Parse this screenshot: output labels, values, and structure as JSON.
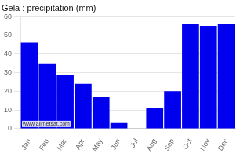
{
  "chart_data": {
    "type": "bar",
    "title": "Gela : precipitation (mm)",
    "categories": [
      "Jan",
      "Feb",
      "Mar",
      "Apr",
      "May",
      "Jun",
      "Jul",
      "Aug",
      "Sep",
      "Oct",
      "Nov",
      "Dec"
    ],
    "values": [
      46,
      35,
      29,
      24,
      17,
      3,
      0,
      11,
      20,
      56,
      55,
      56
    ],
    "color": "#0000ee",
    "ylim": [
      0,
      60
    ],
    "yticks": [
      0,
      10,
      20,
      30,
      40,
      50,
      60
    ],
    "grid": true,
    "annotations": [
      "www.allmetsat.com"
    ]
  }
}
